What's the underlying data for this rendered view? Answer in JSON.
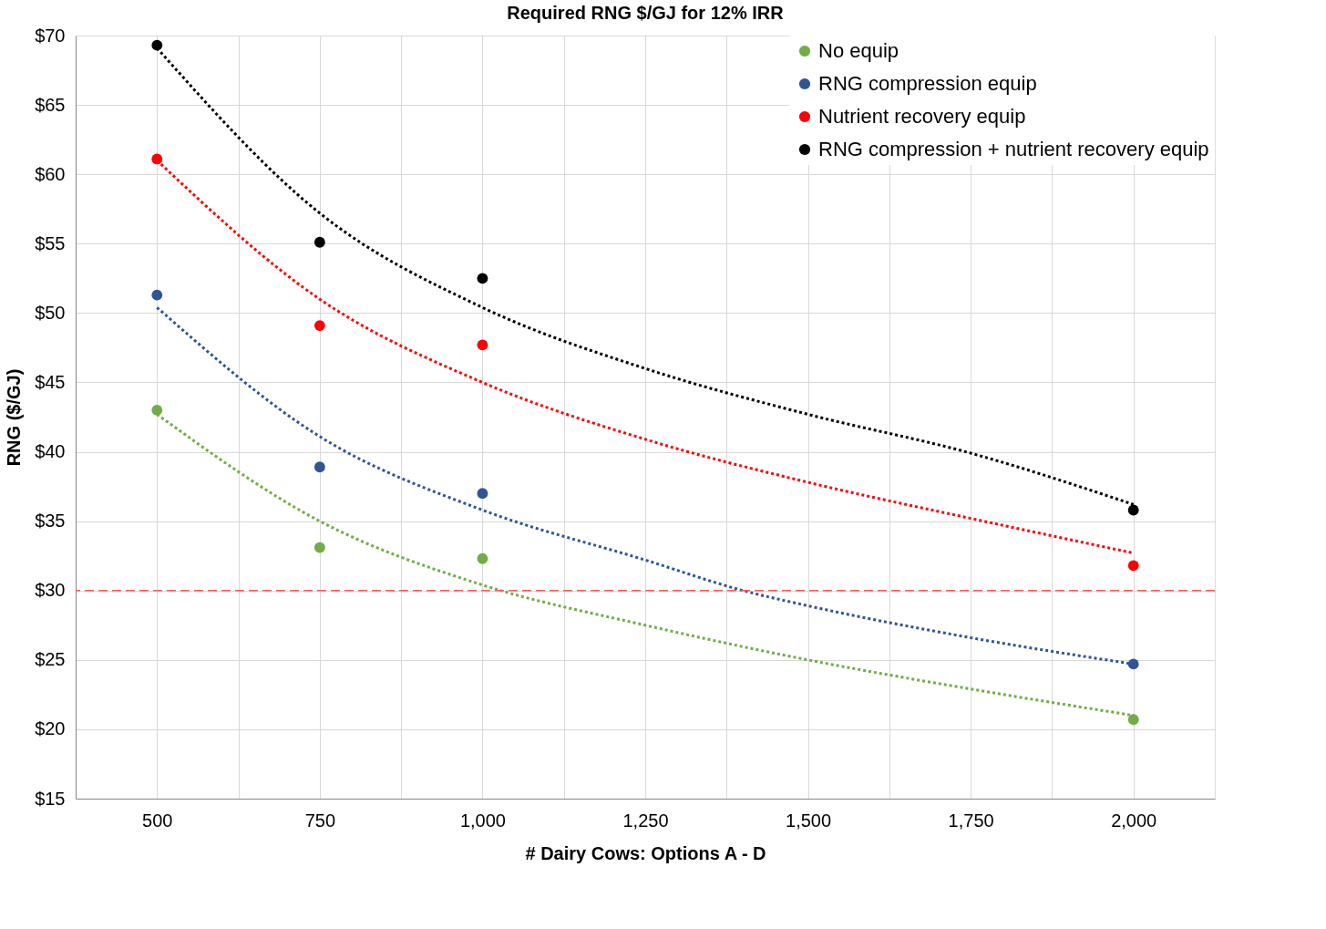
{
  "chart_data": {
    "type": "scatter",
    "title": "Required RNG $/GJ for 12% IRR",
    "xlabel": "# Dairy Cows: Options A - D",
    "ylabel": "RNG ($/GJ)",
    "x": [
      500,
      750,
      1000,
      2000
    ],
    "xlim": [
      375,
      2125
    ],
    "xticks": [
      500,
      {
        "value": 625,
        "label": null
      },
      750,
      {
        "value": 875,
        "label": null
      },
      {
        "value": 1000,
        "label": "1,000"
      },
      {
        "value": 1125,
        "label": null
      },
      {
        "value": 1250,
        "label": "1,250"
      },
      {
        "value": 1375,
        "label": null
      },
      {
        "value": 1500,
        "label": "1,500"
      },
      {
        "value": 1625,
        "label": null
      },
      {
        "value": 1750,
        "label": "1,750"
      },
      {
        "value": 1875,
        "label": null
      },
      {
        "value": 2000,
        "label": "2,000"
      }
    ],
    "ylim": [
      15,
      70
    ],
    "yticks": [
      {
        "value": 15,
        "label": "$15"
      },
      {
        "value": 20,
        "label": "$20"
      },
      {
        "value": 25,
        "label": "$25"
      },
      {
        "value": 30,
        "label": "$30"
      },
      {
        "value": 35,
        "label": "$35"
      },
      {
        "value": 40,
        "label": "$40"
      },
      {
        "value": 45,
        "label": "$45"
      },
      {
        "value": 50,
        "label": "$50"
      },
      {
        "value": 55,
        "label": "$55"
      },
      {
        "value": 60,
        "label": "$60"
      },
      {
        "value": 65,
        "label": "$65"
      },
      {
        "value": 70,
        "label": "$70"
      }
    ],
    "grid": true,
    "legend": "top right",
    "marker": "circle",
    "series": [
      {
        "name": "No equip",
        "color": "#70ad47",
        "values": [
          43.0,
          33.1,
          32.3,
          20.7
        ]
      },
      {
        "name": "RNG compression equip",
        "color": "#2f5597",
        "values": [
          51.3,
          38.9,
          37.0,
          24.7
        ]
      },
      {
        "name": "Nutrient recovery equip",
        "color": "#ff0000",
        "values": [
          61.1,
          49.1,
          47.7,
          31.8
        ]
      },
      {
        "name": "RNG compression + nutrient recovery equip",
        "color": "#000000",
        "values": [
          69.3,
          55.1,
          52.5,
          35.8
        ]
      },
      {
        "type": "line",
        "line_style": "dotted",
        "marker": "none",
        "color": "#70ad47",
        "x": [
          500,
          750,
          1000,
          1250,
          1500,
          1750,
          2000
        ],
        "values": [
          42.7,
          35.0,
          30.4,
          27.5,
          25.0,
          22.9,
          21.0
        ]
      },
      {
        "type": "line",
        "line_style": "dotted",
        "marker": "none",
        "color": "#2f5597",
        "x": [
          500,
          750,
          1000,
          1250,
          1400,
          1500,
          1750,
          2000
        ],
        "values": [
          50.4,
          41.1,
          35.8,
          32.2,
          30.0,
          28.9,
          26.6,
          24.7
        ]
      },
      {
        "type": "line",
        "line_style": "dotted",
        "marker": "none",
        "color": "#ff0000",
        "x": [
          500,
          750,
          1000,
          1250,
          1500,
          1750,
          2000
        ],
        "values": [
          61.0,
          51.0,
          45.0,
          40.9,
          37.8,
          35.2,
          32.7
        ]
      },
      {
        "type": "line",
        "line_style": "dotted",
        "marker": "none",
        "color": "#000000",
        "x": [
          500,
          750,
          1000,
          1250,
          1500,
          1750,
          2000
        ],
        "values": [
          69.1,
          57.2,
          50.4,
          46.0,
          42.7,
          39.9,
          36.2
        ]
      }
    ],
    "ref_lines": [
      {
        "axis": "y",
        "value": 30,
        "color": "#ff5b5b",
        "line_style": "dashed"
      }
    ]
  }
}
